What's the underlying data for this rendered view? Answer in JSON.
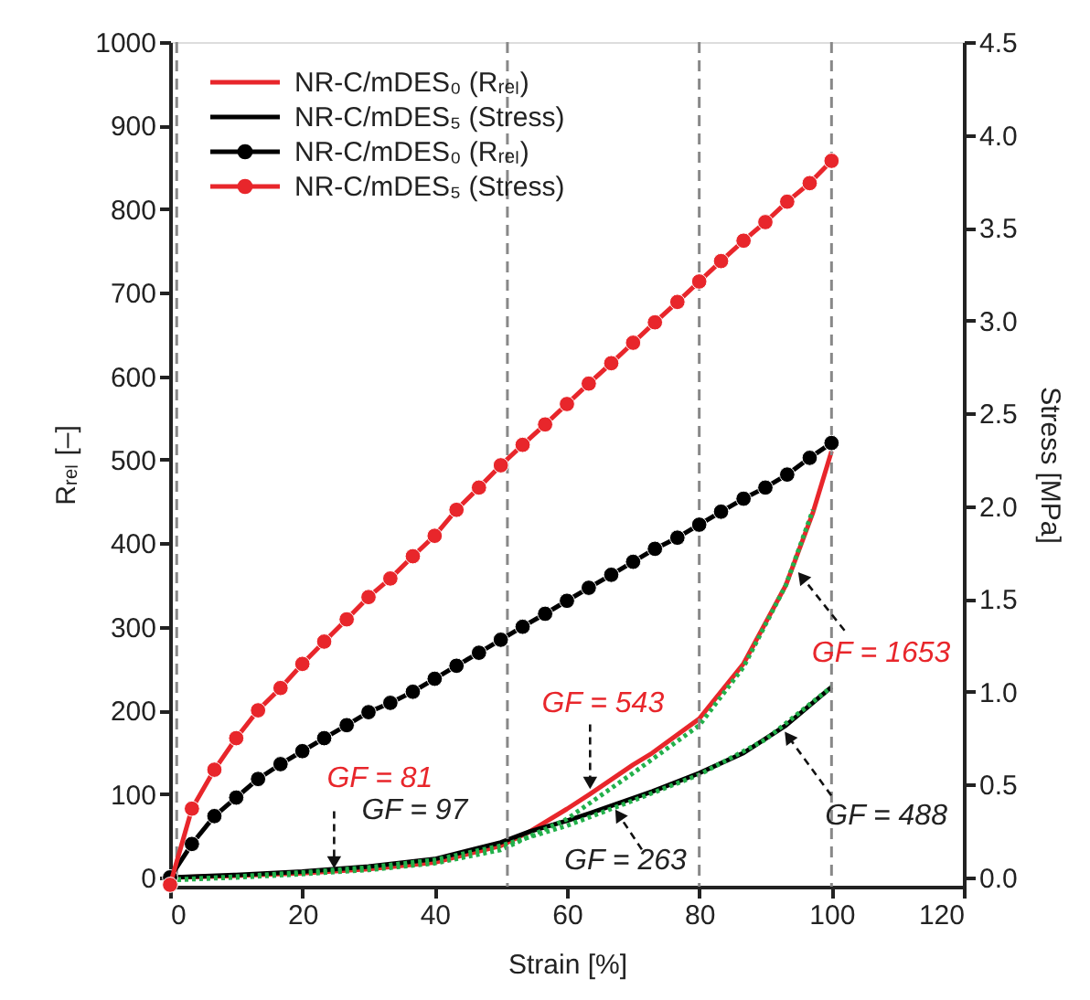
{
  "chart_data": {
    "type": "line",
    "xlabel": "Strain [%]",
    "ylabel": "Rᵣₑₗ [–]",
    "y2label": "Stress [MPa]",
    "xlim": [
      0,
      120
    ],
    "xticks": [
      0,
      20,
      40,
      60,
      80,
      100,
      120
    ],
    "ylim": [
      -11,
      1000
    ],
    "yticks": [
      0,
      100,
      200,
      300,
      400,
      500,
      600,
      700,
      800,
      900,
      1000
    ],
    "y2lim": [
      -0.05,
      4.5
    ],
    "y2ticks": [
      {
        "value": 0,
        "label": "0.0"
      },
      0.5,
      {
        "value": 1,
        "label": "1.0"
      },
      1.5,
      {
        "value": 2,
        "label": "2.0"
      },
      2.5,
      {
        "value": 3,
        "label": "3.0"
      },
      3.5,
      {
        "value": 4,
        "label": "4.0"
      },
      4.5
    ],
    "grid": false,
    "legend": "top left",
    "series": [
      {
        "name": "NR-C/mDES₀ (Rᵣₑₗ)",
        "color": "#e8262b",
        "marker": "none",
        "x": [
          0,
          10,
          20,
          30,
          40,
          50,
          54.4,
          60,
          63.5,
          70,
          72.9,
          80,
          86.7,
          93.1,
          97.2,
          100
        ],
        "values": [
          0,
          2,
          5,
          10,
          18,
          38,
          55,
          82,
          100,
          135,
          149,
          190,
          256,
          350,
          437,
          510
        ]
      },
      {
        "name": "NR-C/mDES₅ (Stress)",
        "color": "#000000",
        "marker": "none",
        "x": [
          0,
          10,
          20,
          30,
          40,
          50,
          54.4,
          60,
          63.5,
          72.9,
          80,
          86.7,
          93.1,
          100
        ],
        "values": [
          0,
          3,
          7,
          13,
          22,
          42,
          55,
          68,
          77,
          103,
          125,
          149,
          182,
          228
        ]
      },
      {
        "name": "NR-C/mDES₀ (Rᵣₑₗ)",
        "color": "#000000",
        "marker": "circle",
        "axis": "y2",
        "x": [
          0,
          3.3,
          6.7,
          10,
          13.3,
          16.7,
          20,
          23.3,
          26.7,
          30,
          33.3,
          36.7,
          40,
          43.3,
          46.7,
          50,
          53.3,
          56.7,
          60,
          63.3,
          66.7,
          70,
          73.3,
          76.7,
          80,
          83.3,
          86.7,
          90,
          93.3,
          96.7,
          100
        ],
        "values": [
          0,
          0.18,
          0.33,
          0.43,
          0.53,
          0.61,
          0.68,
          0.75,
          0.82,
          0.89,
          0.94,
          1.0,
          1.07,
          1.14,
          1.21,
          1.28,
          1.35,
          1.42,
          1.49,
          1.56,
          1.63,
          1.7,
          1.77,
          1.83,
          1.9,
          1.97,
          2.04,
          2.1,
          2.17,
          2.26,
          2.34
        ]
      },
      {
        "name": "NR-C/mDES₅ (Stress)",
        "color": "#e8262b",
        "marker": "circle",
        "axis": "y2",
        "x": [
          0,
          3.3,
          6.7,
          10,
          13.3,
          16.7,
          20,
          23.3,
          26.7,
          30,
          33.3,
          36.7,
          40,
          43.3,
          46.7,
          50,
          53.3,
          56.7,
          60,
          63.3,
          66.7,
          70,
          73.3,
          76.7,
          80,
          83.3,
          86.7,
          90,
          93.3,
          96.7,
          100
        ],
        "values": [
          -0.04,
          0.37,
          0.58,
          0.75,
          0.9,
          1.02,
          1.15,
          1.27,
          1.39,
          1.51,
          1.61,
          1.73,
          1.84,
          1.98,
          2.1,
          2.22,
          2.33,
          2.44,
          2.55,
          2.66,
          2.77,
          2.88,
          2.99,
          3.1,
          3.21,
          3.32,
          3.43,
          3.53,
          3.64,
          3.74,
          3.86
        ]
      },
      {
        "color": "#22b04a",
        "marker": "none",
        "line_style": "dotted",
        "x": [
          0,
          10,
          20,
          30,
          40,
          50,
          60,
          70,
          80,
          86.7,
          93.1,
          97.2
        ],
        "values": [
          -3,
          0,
          4,
          9,
          17,
          33,
          70,
          125,
          182,
          252,
          350,
          440
        ]
      },
      {
        "color": "#22b04a",
        "marker": "none",
        "line_style": "dotted",
        "x": [
          0,
          10,
          20,
          30,
          40,
          50,
          60,
          70,
          80,
          90,
          100
        ],
        "values": [
          -3,
          1,
          6,
          12,
          21,
          38,
          62,
          92,
          123,
          165,
          228
        ]
      }
    ],
    "ref_lines": [
      {
        "axis": "x",
        "value": 1,
        "color": "#888888",
        "line_style": "dashed"
      },
      {
        "axis": "x",
        "value": 51,
        "color": "#888888",
        "line_style": "dashed"
      },
      {
        "axis": "x",
        "value": 80,
        "color": "#888888",
        "line_style": "dashed"
      },
      {
        "axis": "x",
        "value": 100,
        "color": "#888888",
        "line_style": "dashed"
      }
    ],
    "annotations": [
      {
        "text": "GF = 81",
        "x": 24.8,
        "y": 5
      },
      {
        "text": "GF = 97",
        "x": 24.8,
        "y": 9
      },
      {
        "text": "GF = 543",
        "x": 63.5,
        "y": 100
      },
      {
        "text": "GF = 263",
        "x": 66.9,
        "y": 86
      },
      {
        "text": "GF = 1653",
        "x": 94.5,
        "y": 370
      },
      {
        "text": "GF = 488",
        "x": 92.5,
        "y": 179
      }
    ]
  }
}
